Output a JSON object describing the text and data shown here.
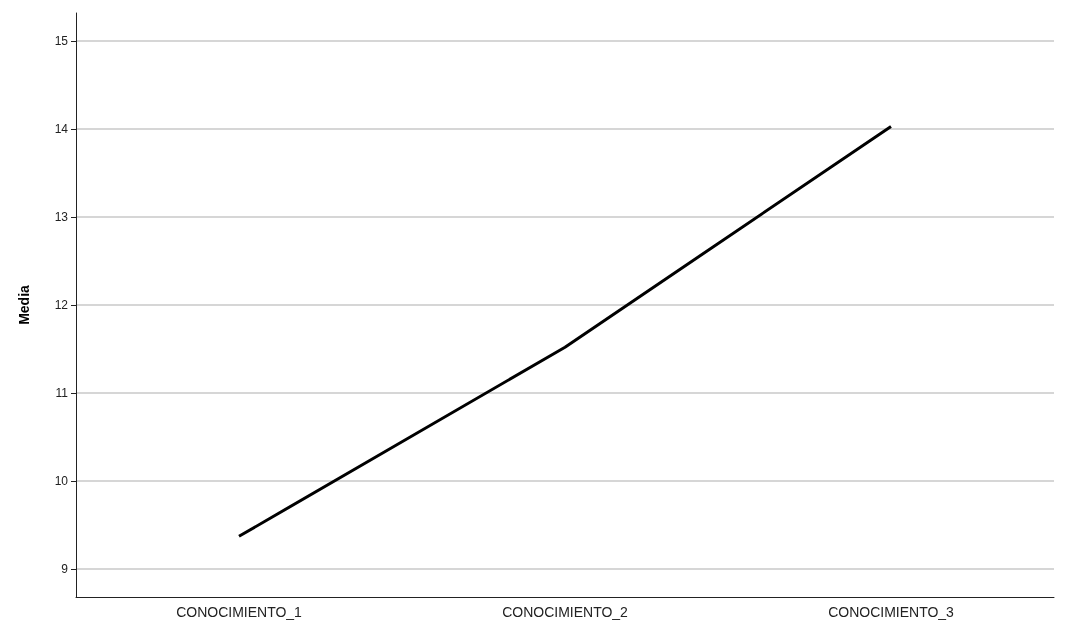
{
  "chart_data": {
    "type": "line",
    "ylabel": "Media",
    "categories": [
      "CONOCIMIENTO_1",
      "CONOCIMIENTO_2",
      "CONOCIMIENTO_3"
    ],
    "series": [
      {
        "color": "#000000",
        "values": [
          9.37,
          11.52,
          14.03
        ]
      }
    ],
    "ylim": [
      8.68,
      15.32
    ],
    "yticks": [
      9,
      10,
      11,
      12,
      13,
      14,
      15
    ],
    "grid": "y",
    "marker": "none",
    "line_style": "solid"
  }
}
